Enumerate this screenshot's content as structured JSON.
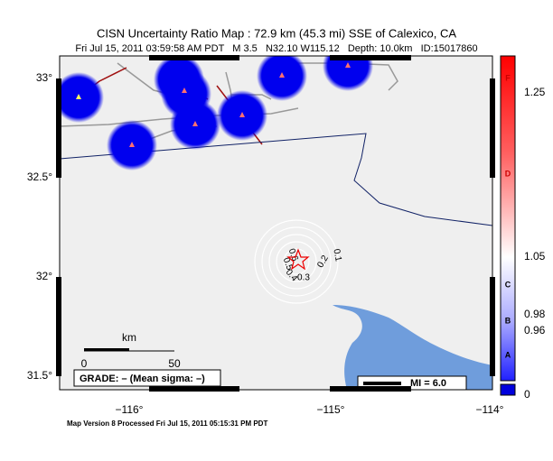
{
  "header": {
    "title": "CISN Uncertainty Ratio Map : 72.9 km (45.3 mi) SSE of Calexico, CA",
    "subtitle": "Fri Jul 15, 2011 03:59:58 AM PDT   M 3.5   N32.10 W115.12   Depth: 10.0km   ID:15017860"
  },
  "map": {
    "lat_labels": [
      "33°",
      "32.5°",
      "32°",
      "31.5°"
    ],
    "lon_labels": [
      "−116°",
      "−115°",
      "−114°"
    ],
    "contour_labels": [
      "0.6",
      "0.5",
      "0.4",
      "0.3",
      "0.2",
      "0.1"
    ],
    "scale": {
      "unit": "km",
      "start": "0",
      "end": "50"
    },
    "grade": "GRADE: – (Mean sigma: –)",
    "mi": "MI = 6.0"
  },
  "colorbar": {
    "letters": [
      "F",
      "D",
      "C",
      "B",
      "A"
    ],
    "labels": [
      "1.25",
      "1.05",
      "0.98",
      "0.96",
      "0"
    ]
  },
  "footer": "Map Version 8 Processed Fri Jul 15, 2011 05:15:31 PM PDT"
}
